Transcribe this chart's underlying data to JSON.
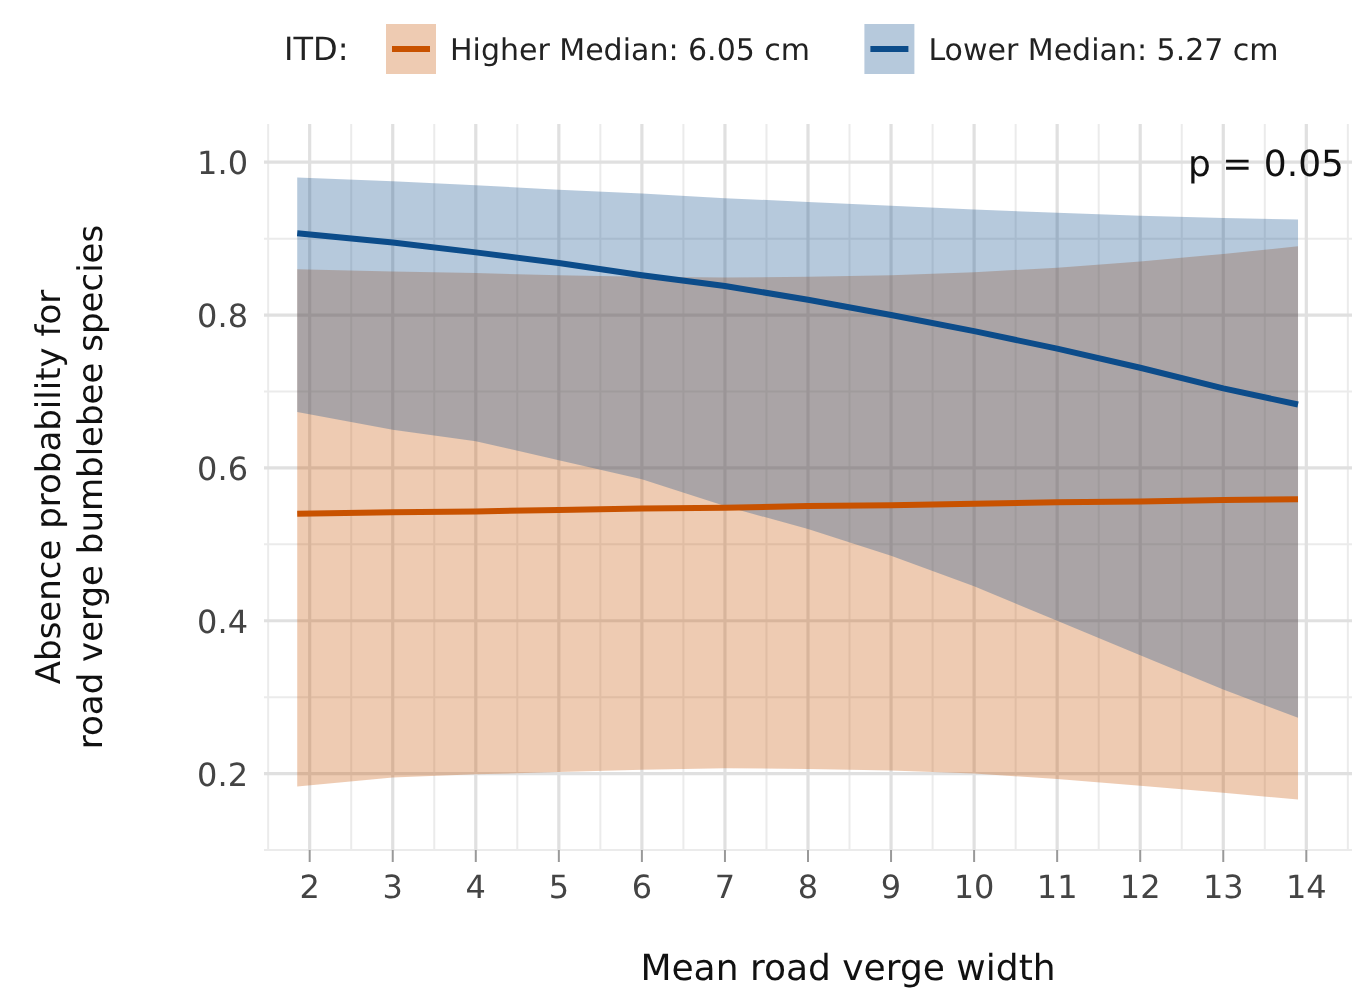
{
  "chart_data": {
    "type": "line",
    "xlabel": "Mean road verge width",
    "ylabel": "Absence probability for\nroad verge bumblebee species",
    "legend_title": "ITD:",
    "legend": "top",
    "grid": true,
    "marker": "none",
    "line_style": "solid",
    "xlim": [
      1.45,
      14.55
    ],
    "xticks": [
      2,
      3,
      4,
      5,
      6,
      7,
      8,
      9,
      10,
      11,
      12,
      13,
      14
    ],
    "ylim": [
      0.1,
      1.05
    ],
    "yticks": [
      {
        "value": 0.2,
        "label": "0.2"
      },
      {
        "value": 0.4,
        "label": "0.4"
      },
      {
        "value": 0.6,
        "label": "0.6"
      },
      {
        "value": 0.8,
        "label": "0.8"
      },
      {
        "value": 1,
        "label": "1.0"
      }
    ],
    "annotations": [
      "p = 0.05"
    ],
    "series": [
      {
        "name": "Higher Median: 6.05 cm",
        "color": "#c85200",
        "x": [
          1.85,
          3,
          4,
          5,
          6,
          7,
          8,
          9,
          10,
          11,
          12,
          13,
          13.9
        ],
        "values": [
          0.54,
          0.542,
          0.543,
          0.545,
          0.547,
          0.548,
          0.55,
          0.551,
          0.553,
          0.555,
          0.556,
          0.558,
          0.559
        ],
        "lower": [
          0.183,
          0.195,
          0.199,
          0.202,
          0.205,
          0.207,
          0.206,
          0.204,
          0.2,
          0.193,
          0.184,
          0.175,
          0.166
        ],
        "upper": [
          0.86,
          0.857,
          0.855,
          0.852,
          0.85,
          0.849,
          0.85,
          0.852,
          0.856,
          0.862,
          0.87,
          0.88,
          0.89
        ]
      },
      {
        "name": "Lower Median: 5.27 cm",
        "color": "#0c4c8a",
        "x": [
          1.85,
          3,
          4,
          5,
          6,
          7,
          8,
          9,
          10,
          11,
          12,
          13,
          13.9
        ],
        "values": [
          0.907,
          0.895,
          0.882,
          0.868,
          0.852,
          0.838,
          0.82,
          0.8,
          0.779,
          0.756,
          0.731,
          0.704,
          0.683
        ],
        "lower": [
          0.673,
          0.65,
          0.635,
          0.61,
          0.585,
          0.55,
          0.52,
          0.485,
          0.445,
          0.4,
          0.355,
          0.31,
          0.273
        ],
        "upper": [
          0.98,
          0.975,
          0.97,
          0.964,
          0.959,
          0.953,
          0.948,
          0.943,
          0.938,
          0.934,
          0.93,
          0.927,
          0.925
        ]
      }
    ]
  }
}
